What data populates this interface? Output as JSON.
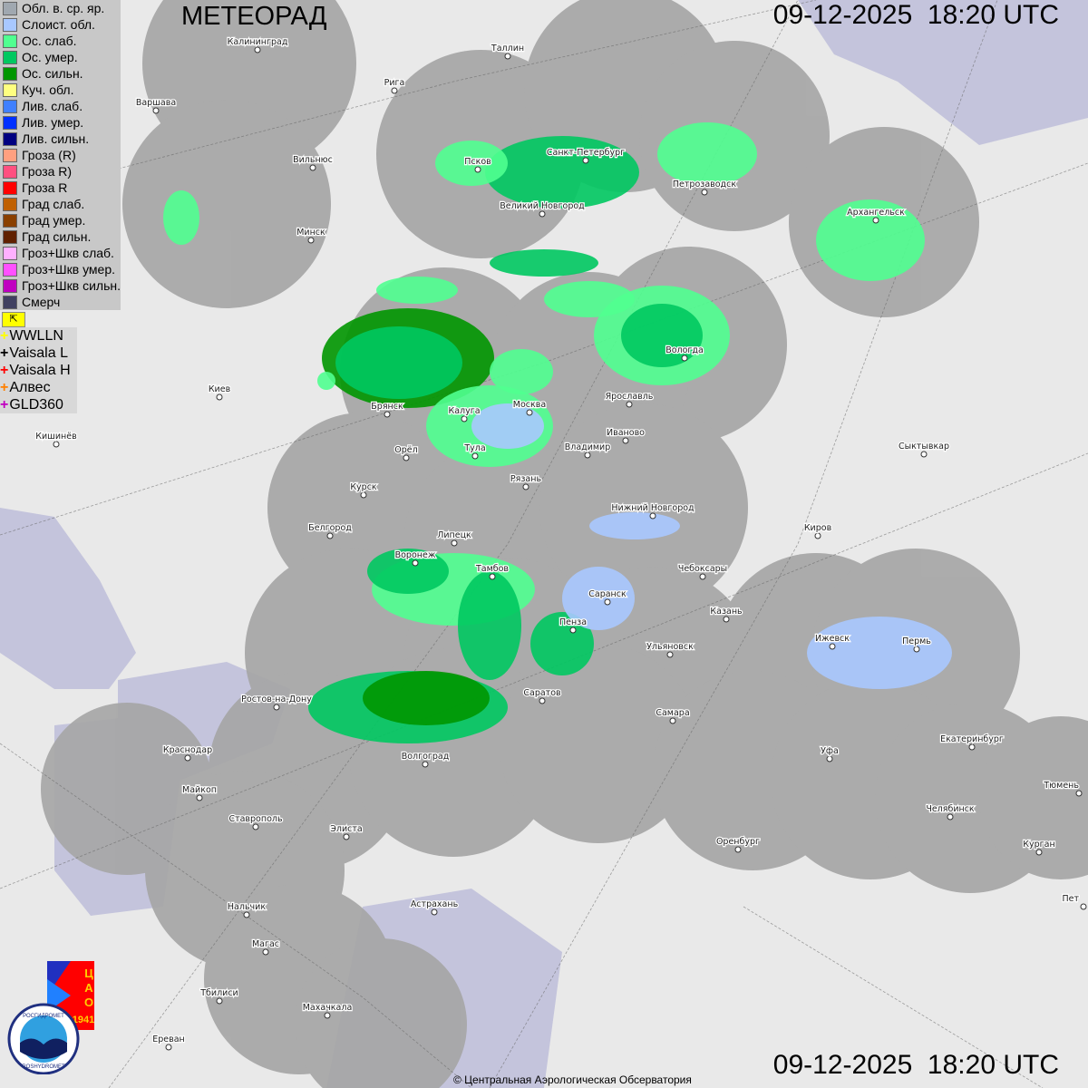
{
  "header": {
    "title": "МЕТЕОРАД",
    "timestamp": "09-12-2025  18:20 UTC"
  },
  "legend": {
    "items": [
      {
        "label": "Обл. в. ср. яр.",
        "color": "#a0a8b0"
      },
      {
        "label": "Слоист. обл.",
        "color": "#a8c8ff"
      },
      {
        "label": "Ос. слаб.",
        "color": "#50ff90"
      },
      {
        "label": "Ос. умер.",
        "color": "#00c860"
      },
      {
        "label": "Ос. сильн.",
        "color": "#009600"
      },
      {
        "label": "Куч. обл.",
        "color": "#ffff80"
      },
      {
        "label": "Лив. слаб.",
        "color": "#4080ff"
      },
      {
        "label": "Лив. умер.",
        "color": "#0030ff"
      },
      {
        "label": "Лив. сильн.",
        "color": "#000080"
      },
      {
        "label": "Гроза (R)",
        "color": "#ffa080"
      },
      {
        "label": "Гроза R)",
        "color": "#ff5080"
      },
      {
        "label": "Гроза R",
        "color": "#ff0000"
      },
      {
        "label": "Град слаб.",
        "color": "#c06000"
      },
      {
        "label": "Град умер.",
        "color": "#8a4000"
      },
      {
        "label": "Град сильн.",
        "color": "#602000"
      },
      {
        "label": "Гроз+Шкв слаб.",
        "color": "#ffb0ff"
      },
      {
        "label": "Гроз+Шкв умер.",
        "color": "#ff50ff"
      },
      {
        "label": "Гроз+Шкв сильн.",
        "color": "#c000c0"
      },
      {
        "label": "Смерч",
        "color": "#404060"
      }
    ],
    "lightning": [
      {
        "label": "WWLLN",
        "color": "#ffff00"
      },
      {
        "label": "Vaisala L",
        "color": "#000000"
      },
      {
        "label": "Vaisala H",
        "color": "#ff0000"
      },
      {
        "label": "Алвес",
        "color": "#ff8000"
      },
      {
        "label": "GLD360",
        "color": "#c000c0"
      }
    ]
  },
  "cities": [
    "Калининград",
    "Таллин",
    "Рига",
    "Варшава",
    "Вильнюс",
    "Минск",
    "Псков",
    "Санкт-Петербург",
    "Петрозаводск",
    "Архангельск",
    "Великий Новгород",
    "Вологда",
    "Ярославль",
    "Иваново",
    "Москва",
    "Калуга",
    "Брянск",
    "Тула",
    "Орёл",
    "Владимир",
    "Рязань",
    "Киев",
    "Кишинёв",
    "Сыктывкар",
    "Курск",
    "Белгород",
    "Липецк",
    "Нижний Новгород",
    "Киров",
    "Воронеж",
    "Тамбов",
    "Чебоксары",
    "Саранск",
    "Казань",
    "Пенза",
    "Ижевск",
    "Пермь",
    "Ульяновск",
    "Ростов-на-Дону",
    "Саратов",
    "Самара",
    "Краснодар",
    "Волгоград",
    "Уфа",
    "Екатеринбург",
    "Майкоп",
    "Тюмень",
    "Ставрополь",
    "Элиста",
    "Челябинск",
    "Оренбург",
    "Курган",
    "Нальчик",
    "Астрахань",
    "Пет",
    "Магас",
    "Тбилиси",
    "Махачкала",
    "Ереван"
  ],
  "logos": {
    "cao": "ЦАО 1941",
    "roshydromet": "РОСГИДРОМЕТ ROSHYDROMET"
  },
  "footer": {
    "copyright": "© Центральная Аэрологическая Обсерватория"
  }
}
